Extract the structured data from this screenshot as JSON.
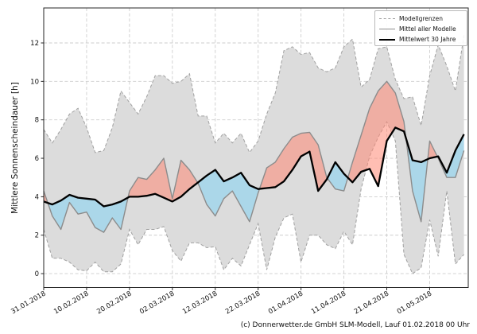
{
  "figure": {
    "y_axis": {
      "label": "Mittlere Sonnenscheindauer [h]",
      "ticks": [
        0,
        2,
        4,
        6,
        8,
        10,
        12
      ]
    },
    "legend": {
      "items": [
        {
          "label": "Modellgrenzen",
          "style": "dashed-gray-line"
        },
        {
          "label": "Mittel aller Modelle",
          "style": "solid-gray-line"
        },
        {
          "label": "Mittelwert 30 Jahre",
          "style": "thick-black-line"
        }
      ]
    },
    "caption": "(c) Donnerwetter.de GmbH SLM-Modell, Lauf 01.02.2018 00 Uhr"
  },
  "colors": {
    "band_fill": "#dcdcdc",
    "bound_line": "#a0a0a0",
    "model_mean_line": "#8c8c8c",
    "climate_mean_line": "#000000",
    "above_fill": "#ff8874",
    "below_fill": "#84d4f4",
    "grid_line": "#cdcdcd",
    "axis": "#262626"
  },
  "chart_data": {
    "type": "line",
    "title": "",
    "xlabel": "",
    "ylabel": "Mittlere Sonnenscheindauer [h]",
    "x_unit": "days since 31.01.2018 (2-day sampling)",
    "xlim": [
      0,
      99
    ],
    "ylim": [
      -0.72,
      13.82
    ],
    "grid": true,
    "legend_position": "upper right",
    "y_ticks": [
      0,
      2,
      4,
      6,
      8,
      10,
      12
    ],
    "x_tick_days": [
      0,
      10,
      20,
      30,
      40,
      50,
      60,
      70,
      80,
      90
    ],
    "x_tick_labels": [
      "31.01.2018",
      "10.02.2018",
      "20.02.2018",
      "02.03.2018",
      "12.03.2018",
      "22.03.2018",
      "01.04.2018",
      "11.04.2018",
      "21.04.2018",
      "01.05.2018"
    ],
    "x": [
      0,
      2,
      4,
      6,
      8,
      10,
      12,
      14,
      16,
      18,
      20,
      22,
      24,
      26,
      28,
      30,
      32,
      34,
      36,
      38,
      40,
      42,
      44,
      46,
      48,
      50,
      52,
      54,
      56,
      58,
      60,
      62,
      64,
      66,
      68,
      70,
      72,
      74,
      76,
      78,
      80,
      82,
      84,
      86,
      88,
      90,
      92,
      94,
      96,
      98
    ],
    "series": [
      {
        "name": "Modellgrenzen (obere Grenze)",
        "role": "upper_bound",
        "style": "dashed",
        "color": "#a0a0a0",
        "values": [
          7.5,
          6.8,
          7.5,
          8.3,
          8.6,
          7.6,
          6.3,
          6.4,
          7.6,
          9.5,
          8.9,
          8.3,
          9.2,
          10.3,
          10.3,
          9.9,
          10.0,
          10.4,
          8.2,
          8.2,
          6.8,
          7.3,
          6.8,
          7.3,
          6.3,
          6.9,
          8.3,
          9.4,
          11.6,
          11.8,
          11.4,
          11.5,
          10.7,
          10.5,
          10.7,
          11.8,
          12.2,
          9.7,
          10.1,
          11.7,
          11.8,
          10.1,
          9.1,
          9.2,
          7.7,
          10.3,
          11.9,
          10.8,
          9.5,
          12.4
        ]
      },
      {
        "name": "Modellgrenzen (untere Grenze)",
        "role": "lower_bound",
        "style": "dashed",
        "color": "#a0a0a0",
        "values": [
          2.3,
          0.8,
          0.8,
          0.6,
          0.2,
          0.15,
          0.6,
          0.1,
          0.1,
          0.5,
          2.3,
          1.5,
          2.3,
          2.3,
          2.45,
          1.2,
          0.65,
          1.6,
          1.6,
          1.35,
          1.4,
          0.2,
          0.8,
          0.4,
          1.5,
          2.6,
          0.2,
          1.9,
          2.9,
          3.1,
          0.6,
          2.0,
          2.0,
          1.5,
          1.3,
          2.2,
          1.5,
          4.4,
          6.1,
          7.1,
          7.9,
          6.9,
          1.0,
          0.0,
          0.3,
          2.8,
          0.9,
          4.3,
          0.5,
          1.0
        ]
      },
      {
        "name": "Mittel aller Modelle",
        "role": "model_mean",
        "style": "solid",
        "color": "#8c8c8c",
        "values": [
          4.3,
          3.0,
          2.3,
          3.7,
          3.1,
          3.2,
          2.4,
          2.15,
          2.9,
          2.3,
          4.3,
          5.0,
          4.9,
          5.4,
          6.0,
          3.9,
          5.9,
          5.4,
          4.7,
          3.6,
          3.0,
          3.9,
          4.3,
          3.5,
          2.7,
          4.2,
          5.5,
          5.8,
          6.5,
          7.1,
          7.3,
          7.35,
          6.7,
          5.0,
          4.4,
          4.3,
          5.8,
          7.2,
          8.6,
          9.5,
          10.0,
          9.4,
          7.9,
          4.3,
          2.7,
          6.9,
          6.0,
          5.0,
          5.0,
          6.4
        ]
      },
      {
        "name": "Mittelwert 30 Jahre",
        "role": "climate_mean_30y",
        "style": "solid-thick",
        "color": "#000000",
        "values": [
          3.75,
          3.6,
          3.8,
          4.1,
          3.95,
          3.9,
          3.85,
          3.5,
          3.6,
          3.75,
          4.0,
          4.0,
          4.05,
          4.15,
          3.95,
          3.75,
          4.0,
          4.4,
          4.75,
          5.1,
          5.4,
          4.8,
          5.0,
          5.25,
          4.6,
          4.4,
          4.45,
          4.5,
          4.8,
          5.4,
          6.1,
          6.35,
          4.3,
          4.9,
          5.8,
          5.2,
          4.75,
          5.3,
          5.45,
          4.55,
          6.9,
          7.6,
          7.4,
          5.9,
          5.8,
          6.0,
          6.1,
          5.25,
          6.4,
          7.25
        ]
      }
    ],
    "fills": [
      {
        "between": [
          "lower_bound",
          "upper_bound"
        ],
        "color": "#dcdcdc",
        "label": "Modellgrenzen Band"
      },
      {
        "between": [
          "climate_mean_30y",
          "model_mean"
        ],
        "color_above": "#ff8874",
        "color_below": "#84d4f4",
        "opacity": 0.55
      }
    ]
  }
}
